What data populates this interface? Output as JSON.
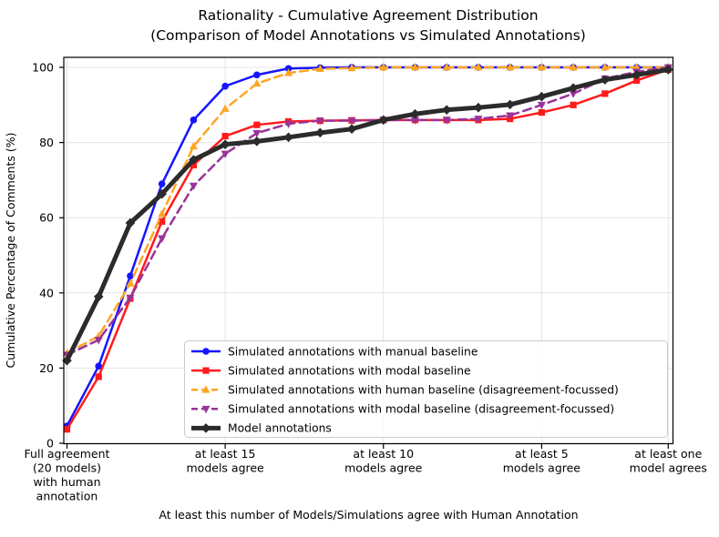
{
  "figure": {
    "background": "#ffffff",
    "grid_color": "#e4e4e4",
    "spine_color": "#000000",
    "legend_border_color": "#cccccc"
  },
  "chart_data": {
    "type": "line",
    "title": "Rationality - Cumulative Agreement Distribution",
    "subtitle": "(Comparison of Model Annotations vs Simulated Annotations)",
    "xlabel": "At least this number of Models/Simulations agree with Human Annotation",
    "ylabel": "Cumulative Percentage of Comments (%)",
    "grid": true,
    "legend_position": "lower right inside axes",
    "x_axis": {
      "description": "number of models/simulations agreeing with human annotation, decreasing left to right",
      "x": [
        20,
        19,
        18,
        17,
        16,
        15,
        14,
        13,
        12,
        11,
        10,
        9,
        8,
        7,
        6,
        5,
        4,
        3,
        2,
        1
      ],
      "ticks": [
        {
          "value": 20,
          "label_lines": [
            "Full agreement",
            "(20 models)",
            "with human",
            "annotation"
          ]
        },
        {
          "value": 15,
          "label_lines": [
            "at least 15",
            "models agree"
          ]
        },
        {
          "value": 10,
          "label_lines": [
            "at least 10",
            "models agree"
          ]
        },
        {
          "value": 5,
          "label_lines": [
            "at least 5",
            "models agree"
          ]
        },
        {
          "value": 1,
          "label_lines": [
            "at least one",
            "model agrees"
          ]
        }
      ]
    },
    "y_axis": {
      "ticks": [
        0,
        20,
        40,
        60,
        80,
        100
      ],
      "min": 0,
      "max": 102.5
    },
    "series": [
      {
        "name": "Simulated annotations with manual baseline",
        "color": "#1515ff",
        "style": "solid",
        "marker": "circle",
        "line_width": 2.5,
        "values": [
          4.6,
          20.5,
          44.5,
          69,
          86,
          95,
          98,
          99.7,
          99.9,
          100,
          100,
          100,
          100,
          100,
          100,
          100,
          100,
          100,
          100,
          100
        ]
      },
      {
        "name": "Simulated annotations with modal baseline",
        "color": "#ff1b1b",
        "style": "solid",
        "marker": "square",
        "line_width": 2.5,
        "values": [
          3.7,
          17.7,
          38.5,
          59,
          74,
          81.7,
          84.7,
          85.6,
          85.8,
          85.9,
          86,
          86,
          86,
          86,
          86.3,
          88,
          90,
          93,
          96.5,
          99.4
        ]
      },
      {
        "name": "Simulated annotations with human baseline (disagreement-focussed)",
        "color": "#ffa524",
        "style": "dashed",
        "marker": "triangle-up",
        "line_width": 2.5,
        "values": [
          24,
          28.5,
          42.5,
          61,
          79,
          89,
          95.7,
          98.5,
          99.6,
          99.8,
          100,
          100,
          100,
          100,
          100,
          100,
          100,
          100,
          100,
          100
        ]
      },
      {
        "name": "Simulated annotations with modal baseline (disagreement-focussed)",
        "color": "#993399",
        "style": "dashed",
        "marker": "triangle-down",
        "line_width": 2.5,
        "values": [
          23.5,
          27.5,
          38.7,
          54.5,
          68.5,
          77,
          82.5,
          85,
          85.8,
          85.8,
          86,
          86,
          86,
          86.3,
          87.2,
          90,
          93,
          97,
          98.8,
          100
        ]
      },
      {
        "name": "Model annotations",
        "color": "#2b2b2b",
        "style": "solid",
        "marker": "diamond",
        "line_width": 5,
        "values": [
          22,
          39,
          58.6,
          66.3,
          75.4,
          79.5,
          80.3,
          81.4,
          82.6,
          83.6,
          86,
          87.6,
          88.7,
          89.3,
          90.1,
          92.2,
          94.5,
          96.7,
          98,
          99.4
        ]
      }
    ]
  }
}
